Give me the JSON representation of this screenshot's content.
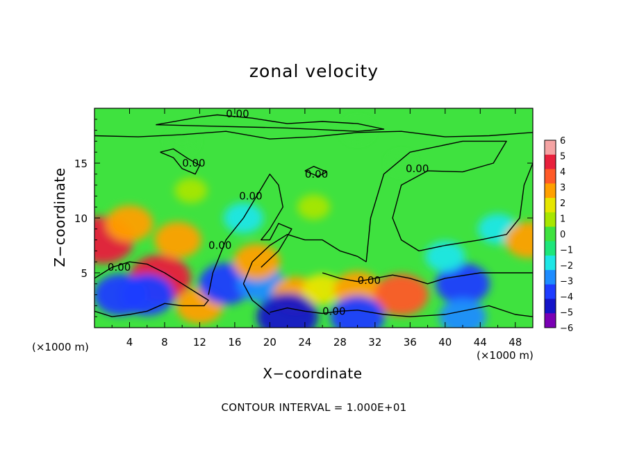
{
  "chart_data": {
    "type": "heatmap",
    "title": "zonal velocity",
    "xlabel": "X−coordinate",
    "ylabel": "Z−coordinate",
    "x_unit_label": "(×1000 m)",
    "xlim": [
      0,
      50
    ],
    "ylim": [
      0,
      20
    ],
    "x_ticks": [
      4,
      8,
      12,
      16,
      20,
      24,
      28,
      32,
      36,
      40,
      44,
      48
    ],
    "y_ticks": [
      5,
      10,
      15
    ],
    "colorbar": {
      "ticks": [
        6,
        5,
        4,
        3,
        2,
        1,
        0,
        -1,
        -2,
        -3,
        -4,
        -5,
        -6
      ],
      "range": [
        -6,
        6
      ],
      "colors": [
        "#f4a3a3",
        "#e8203c",
        "#ff5a28",
        "#ffa000",
        "#e6e600",
        "#a8e600",
        "#3fe23f",
        "#1ee67a",
        "#1ee6e6",
        "#1e8cff",
        "#1e3cff",
        "#1414c8",
        "#7a00b4"
      ]
    },
    "contour_label": "0.00",
    "contour_interval_text": "CONTOUR INTERVAL = 1.000E+01",
    "field_samples": [
      {
        "x": 1,
        "z": 8,
        "value": 5
      },
      {
        "x": 4,
        "z": 9.5,
        "value": 3
      },
      {
        "x": 7.5,
        "z": 4.5,
        "value": 5
      },
      {
        "x": 9.5,
        "z": 8,
        "value": 3
      },
      {
        "x": 3,
        "z": 3,
        "value": -4
      },
      {
        "x": 6,
        "z": 3,
        "value": -4
      },
      {
        "x": 12,
        "z": 2,
        "value": 3
      },
      {
        "x": 15,
        "z": 4,
        "value": -4
      },
      {
        "x": 19,
        "z": 4,
        "value": -3
      },
      {
        "x": 18.5,
        "z": 6,
        "value": 3
      },
      {
        "x": 23,
        "z": 3,
        "value": 3
      },
      {
        "x": 26,
        "z": 3.5,
        "value": 2
      },
      {
        "x": 30,
        "z": 3.5,
        "value": 3
      },
      {
        "x": 35,
        "z": 3,
        "value": 4
      },
      {
        "x": 42,
        "z": 4,
        "value": -4
      },
      {
        "x": 40,
        "z": 6.5,
        "value": -2
      },
      {
        "x": 46,
        "z": 9,
        "value": -2
      },
      {
        "x": 49.5,
        "z": 8,
        "value": 3
      },
      {
        "x": 17,
        "z": 10,
        "value": -2
      },
      {
        "x": 11,
        "z": 12.5,
        "value": 1
      },
      {
        "x": 22,
        "z": 1,
        "value": -5
      },
      {
        "x": 30,
        "z": 1,
        "value": -4
      },
      {
        "x": 42,
        "z": 1,
        "value": -3
      },
      {
        "x": 25,
        "z": 11,
        "value": 1
      },
      {
        "x": 35,
        "z": 15,
        "value": 0
      },
      {
        "x": 10,
        "z": 17,
        "value": 0.5
      },
      {
        "x": 30,
        "z": 18,
        "value": 0.5
      }
    ],
    "contours": [
      {
        "value": 0,
        "label_at": [
          15,
          19.5
        ],
        "points": [
          [
            0,
            17.5
          ],
          [
            5,
            17.4
          ],
          [
            10,
            17.6
          ],
          [
            15,
            17.9
          ],
          [
            20,
            17.2
          ],
          [
            25,
            17.4
          ],
          [
            30,
            17.8
          ],
          [
            35,
            17.9
          ],
          [
            40,
            17.4
          ],
          [
            45,
            17.5
          ],
          [
            50,
            17.8
          ]
        ]
      },
      {
        "value": 0,
        "label_at": [
          15,
          19.5
        ],
        "points": [
          [
            7,
            18.5
          ],
          [
            12,
            19.2
          ],
          [
            14,
            19.4
          ],
          [
            18,
            19.1
          ],
          [
            22,
            18.6
          ],
          [
            26,
            18.8
          ],
          [
            30,
            18.6
          ],
          [
            33,
            18.1
          ],
          [
            30,
            17.9
          ],
          [
            22,
            18.2
          ],
          [
            12,
            18.4
          ],
          [
            7,
            18.5
          ]
        ]
      },
      {
        "value": 0,
        "label_at": [
          35.5,
          14.5
        ],
        "points": [
          [
            31,
            6
          ],
          [
            31.5,
            10
          ],
          [
            33,
            14
          ],
          [
            36,
            16
          ],
          [
            42,
            17
          ],
          [
            47,
            17
          ],
          [
            45.5,
            15
          ],
          [
            42,
            14.2
          ],
          [
            38,
            14.3
          ],
          [
            35,
            13
          ],
          [
            34,
            10
          ],
          [
            35,
            8
          ],
          [
            37,
            7
          ],
          [
            40,
            7.5
          ],
          [
            44,
            8
          ],
          [
            47,
            8.5
          ],
          [
            48.5,
            10
          ],
          [
            49,
            13
          ],
          [
            50,
            15
          ]
        ]
      },
      {
        "value": 0,
        "label_at": [
          16.5,
          12
        ],
        "points": [
          [
            20,
            1.2
          ],
          [
            18,
            2.5
          ],
          [
            17,
            4
          ],
          [
            18,
            6
          ],
          [
            20,
            7.5
          ],
          [
            22,
            8.5
          ],
          [
            24,
            8
          ],
          [
            26,
            8
          ],
          [
            28,
            7
          ],
          [
            30,
            6.5
          ],
          [
            31,
            6
          ]
        ]
      },
      {
        "value": 0,
        "label_at": [
          30,
          4.3
        ],
        "points": [
          [
            26,
            5
          ],
          [
            28,
            4.5
          ],
          [
            30,
            4.2
          ],
          [
            32,
            4.5
          ],
          [
            34,
            4.8
          ],
          [
            36,
            4.5
          ],
          [
            38,
            4
          ],
          [
            40,
            4.5
          ],
          [
            44,
            5
          ],
          [
            47,
            5
          ],
          [
            50,
            5
          ]
        ]
      },
      {
        "value": 0,
        "label_at": [
          26,
          1.5
        ],
        "points": [
          [
            20,
            1.4
          ],
          [
            22,
            1.8
          ],
          [
            24,
            1.5
          ],
          [
            26,
            1.3
          ],
          [
            28,
            1.5
          ],
          [
            30,
            1.6
          ],
          [
            33,
            1.2
          ],
          [
            36,
            1
          ],
          [
            40,
            1.2
          ],
          [
            45,
            2
          ],
          [
            48,
            1.2
          ],
          [
            50,
            1
          ]
        ]
      },
      {
        "value": 0,
        "label_at": [
          1.5,
          5.5
        ],
        "points": [
          [
            0,
            4.5
          ],
          [
            2,
            5.5
          ],
          [
            4,
            6
          ],
          [
            6,
            5.8
          ],
          [
            8,
            5
          ],
          [
            10,
            4
          ],
          [
            12,
            3
          ],
          [
            13,
            2.5
          ],
          [
            12.5,
            2
          ],
          [
            10,
            2
          ],
          [
            8,
            2.2
          ],
          [
            6,
            1.5
          ],
          [
            4,
            1.2
          ],
          [
            2,
            1
          ],
          [
            0,
            1.5
          ]
        ]
      },
      {
        "value": 0,
        "label_at": [
          13,
          7.5
        ],
        "points": [
          [
            13,
            3
          ],
          [
            13.5,
            5
          ],
          [
            15,
            8
          ],
          [
            17,
            10
          ],
          [
            18.5,
            12
          ],
          [
            20,
            14
          ],
          [
            21,
            13
          ],
          [
            21.5,
            11
          ],
          [
            20,
            9
          ],
          [
            19,
            8
          ],
          [
            20,
            8
          ],
          [
            21,
            9.5
          ],
          [
            22.5,
            9
          ],
          [
            21,
            7
          ],
          [
            19,
            5.5
          ]
        ]
      },
      {
        "value": 0,
        "label_at": [
          10,
          15
        ],
        "points": [
          [
            7.5,
            16
          ],
          [
            9,
            15.5
          ],
          [
            10,
            14.5
          ],
          [
            11.5,
            14
          ],
          [
            12,
            14.8
          ],
          [
            10.5,
            15.5
          ],
          [
            9,
            16.3
          ],
          [
            7.5,
            16
          ]
        ]
      },
      {
        "value": 0,
        "label_at": [
          24,
          14
        ],
        "points": [
          [
            24,
            14.3
          ],
          [
            25.5,
            13.8
          ],
          [
            26.5,
            14.2
          ],
          [
            25,
            14.7
          ],
          [
            24,
            14.3
          ]
        ]
      }
    ]
  }
}
